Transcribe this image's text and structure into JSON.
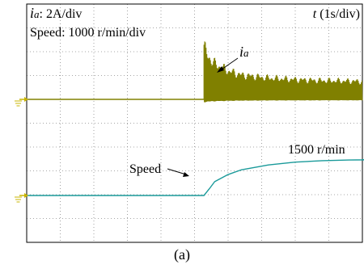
{
  "figure": {
    "caption": "(a)"
  },
  "chart_data": {
    "type": "line",
    "annotations": {
      "ia_scale_symbol": "i",
      "ia_scale_sub": "a",
      "ia_scale_text": ": 2A/div",
      "speed_scale": "Speed: 1000 r/min/div",
      "time_scale_symbol": "t",
      "time_scale_text": " (1s/div)",
      "ia_trace_symbol": "i",
      "ia_trace_sub": "a",
      "speed_trace_label": "Speed",
      "speed_final_label": "1500 r/min"
    },
    "axes": {
      "x_divisions": 10,
      "y_divisions": 10,
      "x_unit_per_div_s": 1,
      "grid": "dotted"
    },
    "colors": {
      "ia": "#808000",
      "speed": "#1a9a9a",
      "ground_marker": "#c8b400",
      "grid": "#8a8a8a"
    },
    "series": [
      {
        "trace": "ia",
        "x_s": [
          0,
          6.6,
          6.6,
          6.7,
          7.0,
          7.5,
          8.0,
          9.0,
          10.0,
          11.0,
          12.0,
          13.0
        ],
        "y_a": [
          0,
          0,
          10.8,
          8.8,
          7.0,
          5.6,
          4.8,
          4.2,
          3.9,
          3.7,
          3.6,
          3.5
        ],
        "steady_before_a": 0
      },
      {
        "trace": "speed",
        "x_s": [
          0,
          6.6,
          6.8,
          7.0,
          7.5,
          8.0,
          9.0,
          10.0,
          11.0,
          12.0,
          13.0
        ],
        "y_rpm": [
          0,
          0,
          280,
          580,
          880,
          1080,
          1280,
          1400,
          1460,
          1490,
          1500
        ]
      }
    ]
  }
}
